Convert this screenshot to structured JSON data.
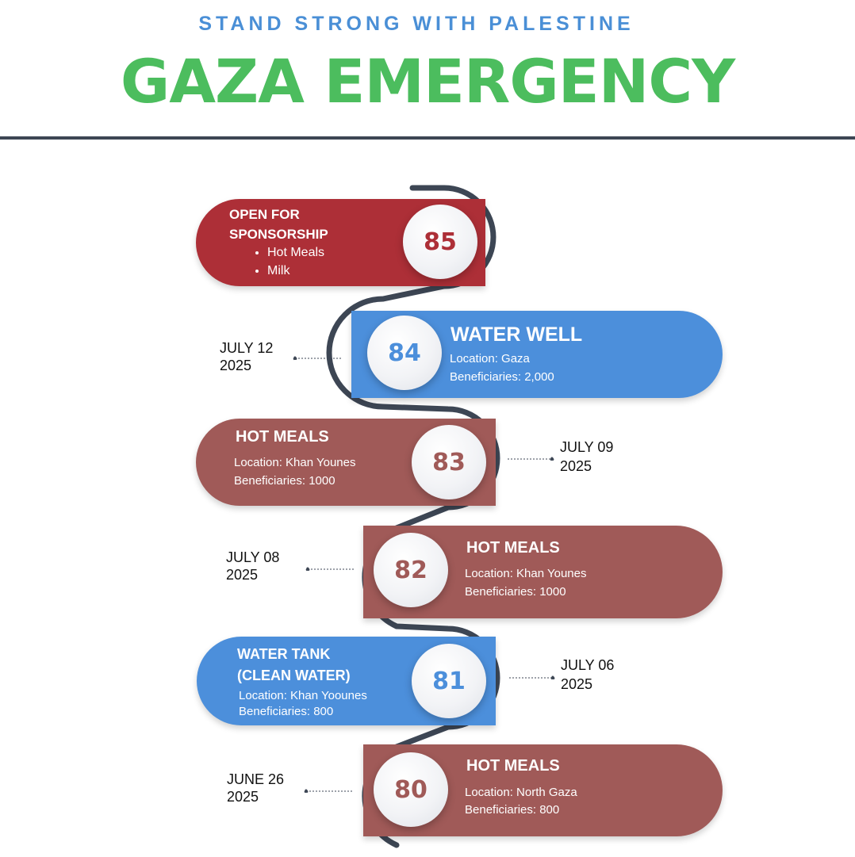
{
  "header": {
    "subtitle": "STAND STRONG WITH PALESTINE",
    "title": "GAZA EMERGENCY"
  },
  "colors": {
    "subtitle": "#4a8fd6",
    "title": "#4cbd5e",
    "red": "#ad2f37",
    "blue": "#4c8fdb",
    "brown": "#a05a58",
    "connector": "#3d4654"
  },
  "cards": [
    {
      "number": "85",
      "title_line1": "OPEN FOR",
      "title_line2": "SPONSORSHIP",
      "items": [
        "Hot Meals",
        "Milk"
      ]
    },
    {
      "number": "84",
      "title": "WATER WELL",
      "location": "Location: Gaza",
      "beneficiaries": "Beneficiaries: 2,000",
      "date_line1": "JULY 12",
      "date_line2": "2025"
    },
    {
      "number": "83",
      "title": "HOT MEALS",
      "location": "Location: Khan Younes",
      "beneficiaries": "Beneficiaries: 1000",
      "date_line1": "JULY 09",
      "date_line2": "2025"
    },
    {
      "number": "82",
      "title": "HOT MEALS",
      "location": "Location: Khan Younes",
      "beneficiaries": "Beneficiaries: 1000",
      "date_line1": "JULY 08",
      "date_line2": "2025"
    },
    {
      "number": "81",
      "title_line1": "WATER TANK",
      "title_line2": "(CLEAN WATER)",
      "location": "Location:  Khan Yoounes",
      "beneficiaries": "Beneficiaries: 800",
      "date_line1": "JULY 06",
      "date_line2": "2025"
    },
    {
      "number": "80",
      "title": "HOT MEALS",
      "location": "Location: North Gaza",
      "beneficiaries": "Beneficiaries: 800",
      "date_line1": "JUNE 26",
      "date_line2": "2025"
    }
  ]
}
